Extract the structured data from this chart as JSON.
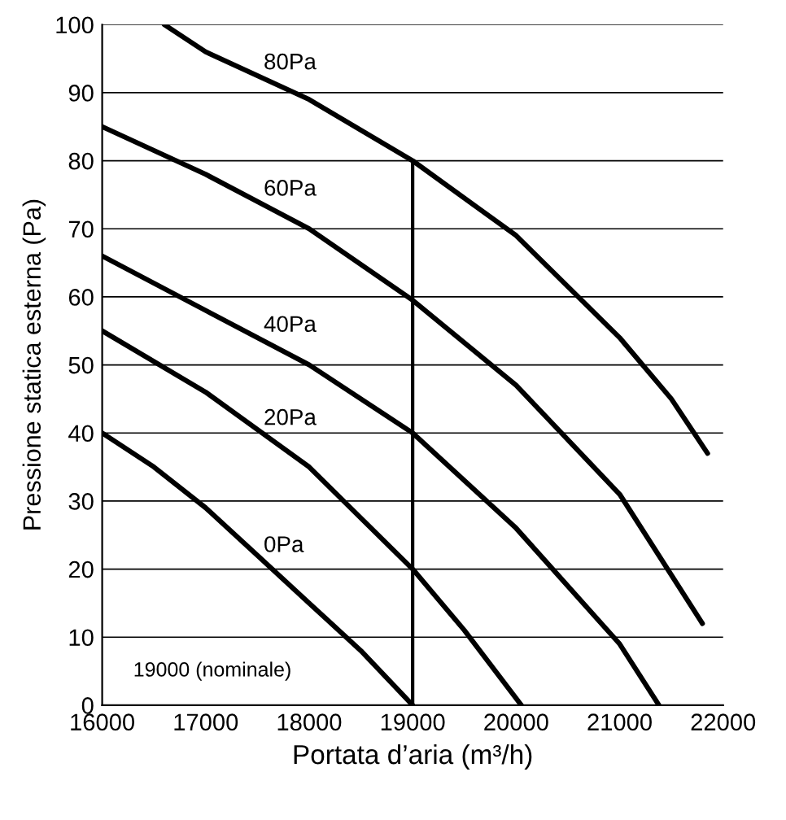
{
  "chart_data": {
    "type": "line",
    "xlabel": "Portata d’aria (m³/h)",
    "ylabel": "Pressione statica esterna (Pa)",
    "xlim": [
      16000,
      22000
    ],
    "xticks": [
      16000,
      17000,
      18000,
      19000,
      20000,
      21000,
      22000
    ],
    "ylim": [
      0,
      100
    ],
    "yticks": [
      0,
      10,
      20,
      30,
      40,
      50,
      60,
      70,
      80,
      90,
      100
    ],
    "grid": "y",
    "marker": "none",
    "line_style": "solid",
    "series": [
      {
        "name": "0Pa",
        "color": "#000000",
        "x": [
          16000,
          16500,
          17000,
          17500,
          18000,
          18500,
          19000
        ],
        "values": [
          40,
          35,
          29,
          22,
          15,
          8,
          0
        ]
      },
      {
        "name": "20Pa",
        "color": "#000000",
        "x": [
          16000,
          17000,
          18000,
          19000,
          19500,
          20050
        ],
        "values": [
          55,
          46,
          35,
          20,
          11,
          0
        ]
      },
      {
        "name": "40Pa",
        "color": "#000000",
        "x": [
          16000,
          17000,
          18000,
          19000,
          20000,
          21000,
          21380
        ],
        "values": [
          66,
          58,
          50,
          40,
          26,
          9,
          0
        ]
      },
      {
        "name": "60Pa",
        "color": "#000000",
        "x": [
          16000,
          17000,
          18000,
          19000,
          20000,
          21000,
          21800
        ],
        "values": [
          85,
          78,
          70,
          59.5,
          47,
          31,
          12
        ]
      },
      {
        "name": "80Pa",
        "color": "#000000",
        "x": [
          16600,
          17000,
          18000,
          19000,
          20000,
          21000,
          21500,
          21850
        ],
        "values": [
          100,
          96,
          89,
          80,
          69,
          54,
          45,
          37
        ]
      },
      {
        "color": "#000000",
        "x": [
          19000,
          19000
        ],
        "values": [
          0,
          80
        ]
      }
    ],
    "annotations": [
      "19000 (nominale)"
    ]
  }
}
